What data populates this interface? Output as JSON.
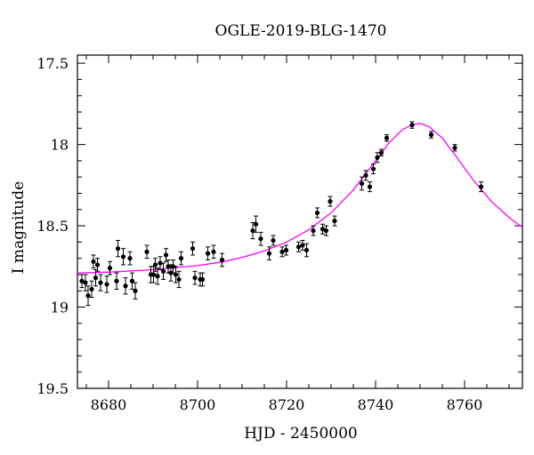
{
  "chart_data": {
    "type": "scatter",
    "title": "OGLE-2019-BLG-1470",
    "xlabel": "HJD - 2450000",
    "ylabel": "I magnitude",
    "xlim": [
      8673,
      8773
    ],
    "ylim": [
      19.5,
      17.45
    ],
    "y_inverted": true,
    "x_ticks": [
      8680,
      8700,
      8720,
      8740,
      8760
    ],
    "x_tick_labels": [
      "8680",
      "8700",
      "8720",
      "8740",
      "8760"
    ],
    "y_ticks": [
      17.5,
      18,
      18.5,
      19,
      19.5
    ],
    "y_tick_labels": [
      "17.5",
      "18",
      "18.5",
      "19",
      "19.5"
    ],
    "colors": {
      "points": "#000000",
      "model": "#ff00ff"
    },
    "series": [
      {
        "kind": "points_with_errorbars",
        "x": [
          8674.0,
          8674.8,
          8675.4,
          8676.2,
          8676.6,
          8677.1,
          8677.5,
          8678.2,
          8679.6,
          8680.3,
          8681.8,
          8682.1,
          8683.3,
          8683.8,
          8684.8,
          8685.3,
          8686.0,
          8688.6,
          8689.5,
          8690.1,
          8690.5,
          8691.0,
          8691.6,
          8692.3,
          8692.9,
          8693.4,
          8694.0,
          8694.5,
          8695.1,
          8695.8,
          8696.3,
          8698.9,
          8699.4,
          8700.6,
          8701.1,
          8702.3,
          8703.6,
          8705.5,
          8712.4,
          8713.1,
          8714.2,
          8716.1,
          8717.0,
          8719.0,
          8719.9,
          8722.7,
          8723.6,
          8724.5,
          8726.0,
          8726.9,
          8728.1,
          8728.9,
          8729.8,
          8730.8,
          8736.9,
          8737.8,
          8738.7,
          8739.5,
          8740.4,
          8741.3,
          8742.5,
          8748.2,
          8752.5,
          8757.8,
          8763.7
        ],
        "y": [
          18.84,
          18.85,
          18.93,
          18.89,
          18.72,
          18.82,
          18.74,
          18.85,
          18.86,
          18.76,
          18.84,
          18.64,
          18.69,
          18.87,
          18.7,
          18.84,
          18.9,
          18.66,
          18.8,
          18.8,
          18.74,
          18.81,
          18.73,
          18.78,
          18.68,
          18.75,
          18.79,
          18.75,
          18.8,
          18.83,
          18.7,
          18.64,
          18.82,
          18.83,
          18.83,
          18.67,
          18.66,
          18.71,
          18.53,
          18.49,
          18.58,
          18.67,
          18.59,
          18.66,
          18.65,
          18.63,
          18.62,
          18.65,
          18.53,
          18.42,
          18.52,
          18.53,
          18.35,
          18.47,
          18.24,
          18.19,
          18.26,
          18.15,
          18.08,
          18.05,
          17.96,
          17.88,
          17.94,
          18.02,
          18.26
        ],
        "yerr": [
          0.04,
          0.05,
          0.06,
          0.05,
          0.04,
          0.05,
          0.04,
          0.05,
          0.05,
          0.04,
          0.05,
          0.05,
          0.05,
          0.05,
          0.04,
          0.05,
          0.05,
          0.04,
          0.05,
          0.05,
          0.04,
          0.05,
          0.04,
          0.05,
          0.04,
          0.04,
          0.05,
          0.04,
          0.05,
          0.05,
          0.04,
          0.04,
          0.04,
          0.04,
          0.04,
          0.04,
          0.04,
          0.04,
          0.05,
          0.05,
          0.04,
          0.04,
          0.03,
          0.03,
          0.03,
          0.03,
          0.03,
          0.04,
          0.03,
          0.03,
          0.03,
          0.03,
          0.03,
          0.03,
          0.04,
          0.03,
          0.03,
          0.03,
          0.03,
          0.02,
          0.02,
          0.02,
          0.02,
          0.02,
          0.03
        ]
      },
      {
        "kind": "model_curve",
        "x": [
          8673,
          8680,
          8690,
          8700,
          8705,
          8710,
          8715,
          8720,
          8725,
          8730,
          8735,
          8740,
          8743,
          8746,
          8748,
          8750,
          8752,
          8755,
          8758,
          8762,
          8766,
          8770,
          8773
        ],
        "y": [
          18.79,
          18.785,
          18.77,
          18.745,
          18.725,
          18.695,
          18.655,
          18.6,
          18.525,
          18.42,
          18.28,
          18.1,
          17.99,
          17.91,
          17.88,
          17.87,
          17.89,
          17.96,
          18.07,
          18.22,
          18.35,
          18.45,
          18.51
        ]
      }
    ]
  }
}
